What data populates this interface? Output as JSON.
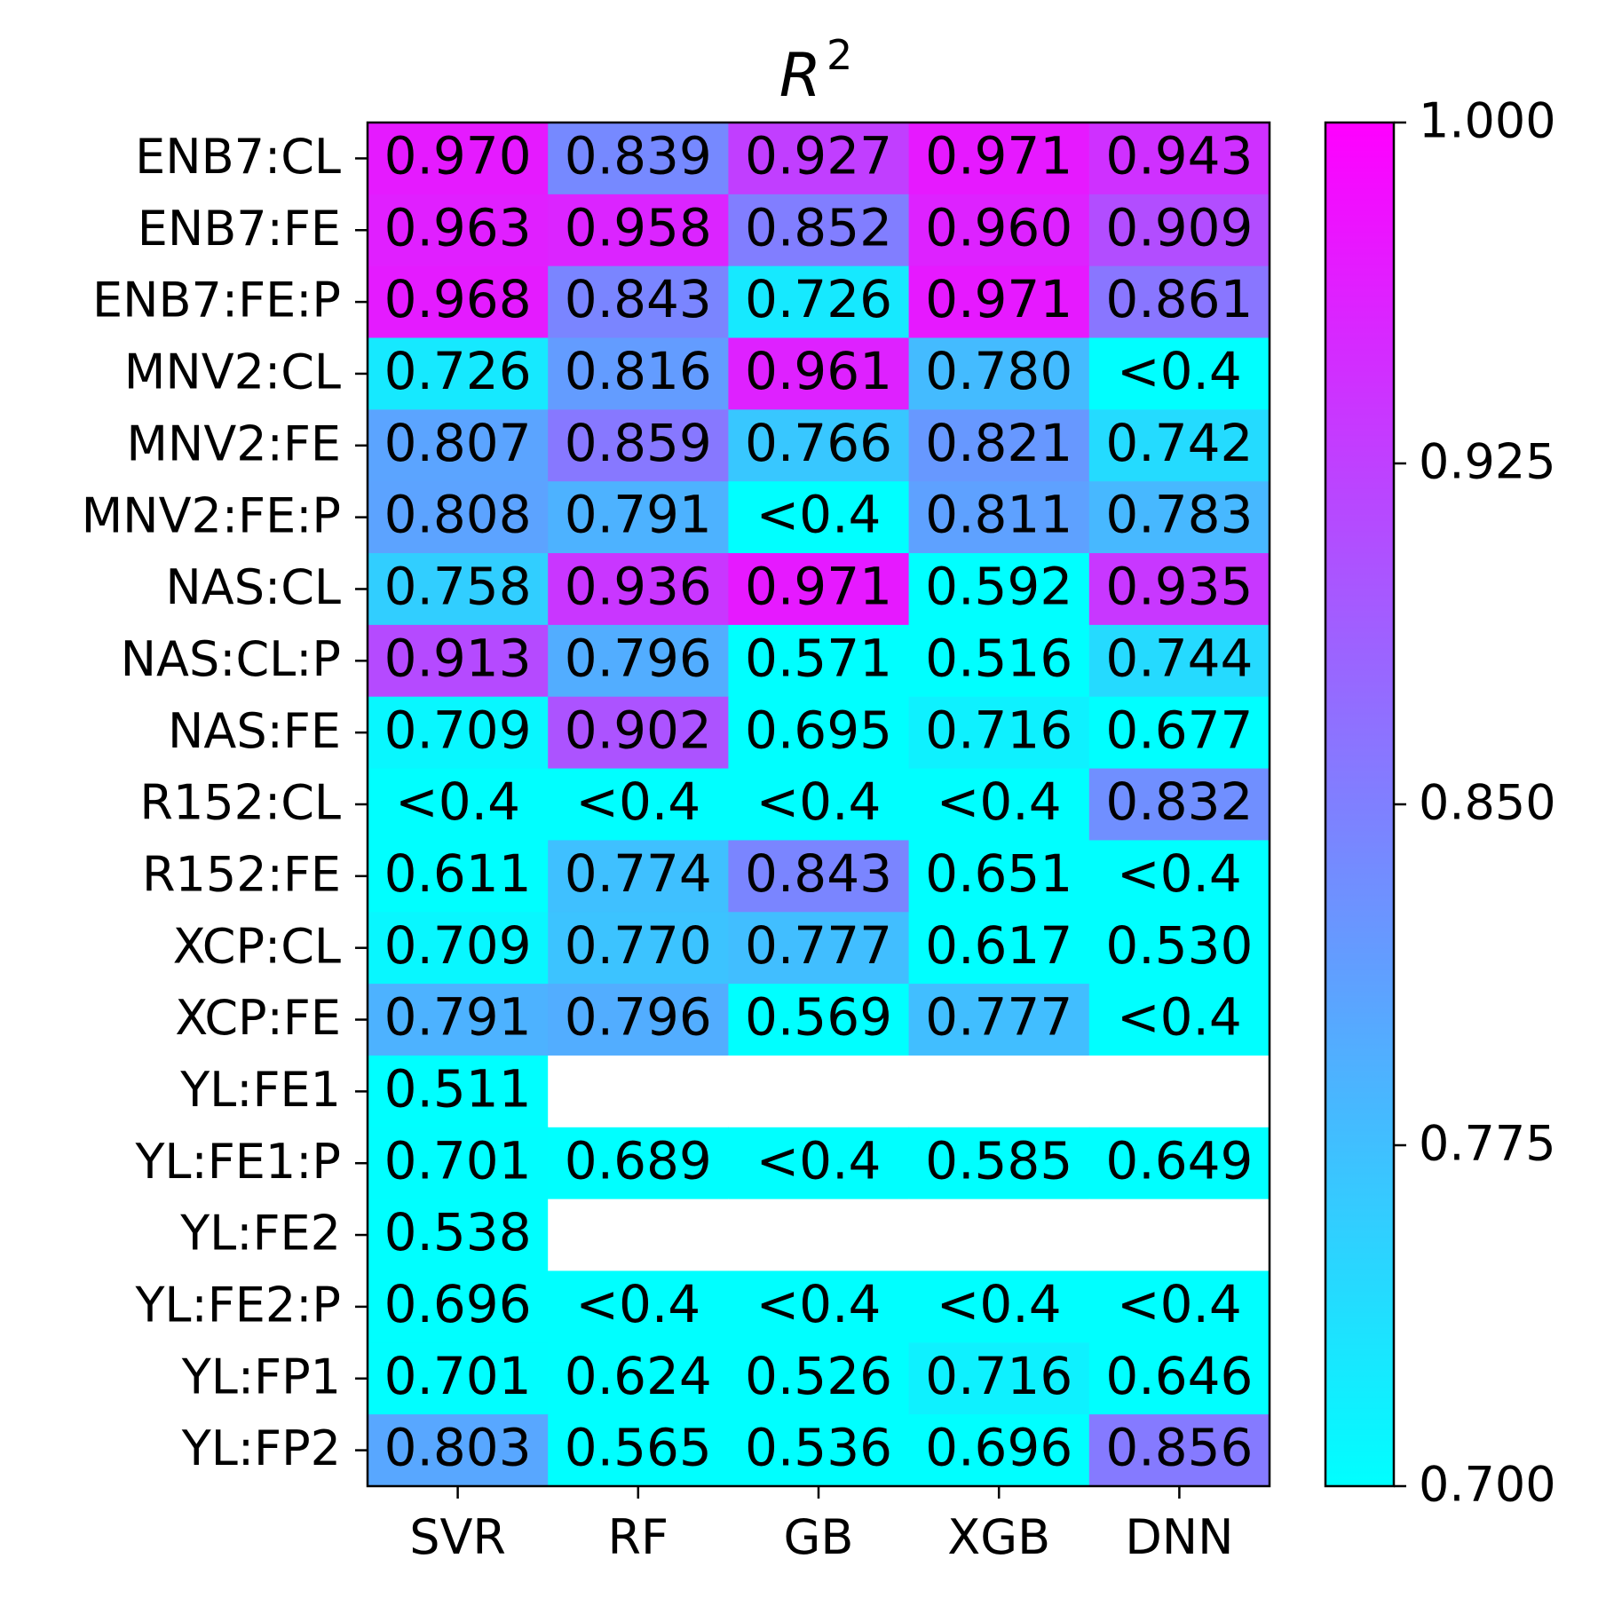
{
  "chart_data": {
    "type": "heatmap",
    "title": "R",
    "title_superscript": "2",
    "columns": [
      "SVR",
      "RF",
      "GB",
      "XGB",
      "DNN"
    ],
    "rows": [
      "ENB7:CL",
      "ENB7:FE",
      "ENB7:FE:P",
      "MNV2:CL",
      "MNV2:FE",
      "MNV2:FE:P",
      "NAS:CL",
      "NAS:CL:P",
      "NAS:FE",
      "R152:CL",
      "R152:FE",
      "XCP:CL",
      "XCP:FE",
      "YL:FE1",
      "YL:FE1:P",
      "YL:FE2",
      "YL:FE2:P",
      "YL:FP1",
      "YL:FP2"
    ],
    "cells": [
      [
        "0.970",
        "0.839",
        "0.927",
        "0.971",
        "0.943"
      ],
      [
        "0.963",
        "0.958",
        "0.852",
        "0.960",
        "0.909"
      ],
      [
        "0.968",
        "0.843",
        "0.726",
        "0.971",
        "0.861"
      ],
      [
        "0.726",
        "0.816",
        "0.961",
        "0.780",
        "<0.4"
      ],
      [
        "0.807",
        "0.859",
        "0.766",
        "0.821",
        "0.742"
      ],
      [
        "0.808",
        "0.791",
        "<0.4",
        "0.811",
        "0.783"
      ],
      [
        "0.758",
        "0.936",
        "0.971",
        "0.592",
        "0.935"
      ],
      [
        "0.913",
        "0.796",
        "0.571",
        "0.516",
        "0.744"
      ],
      [
        "0.709",
        "0.902",
        "0.695",
        "0.716",
        "0.677"
      ],
      [
        "<0.4",
        "<0.4",
        "<0.4",
        "<0.4",
        "0.832"
      ],
      [
        "0.611",
        "0.774",
        "0.843",
        "0.651",
        "<0.4"
      ],
      [
        "0.709",
        "0.770",
        "0.777",
        "0.617",
        "0.530"
      ],
      [
        "0.791",
        "0.796",
        "0.569",
        "0.777",
        "<0.4"
      ],
      [
        "0.511",
        "",
        "",
        "",
        ""
      ],
      [
        "0.701",
        "0.689",
        "<0.4",
        "0.585",
        "0.649"
      ],
      [
        "0.538",
        "",
        "",
        "",
        ""
      ],
      [
        "0.696",
        "<0.4",
        "<0.4",
        "<0.4",
        "<0.4"
      ],
      [
        "0.701",
        "0.624",
        "0.526",
        "0.716",
        "0.646"
      ],
      [
        "0.803",
        "0.565",
        "0.536",
        "0.696",
        "0.856"
      ]
    ],
    "colorscale": {
      "name": "cool",
      "min": 0.7,
      "max": 1.0,
      "min_color": "#00ffff",
      "max_color": "#ff00ff",
      "ticks": [
        "0.700",
        "0.775",
        "0.850",
        "0.925",
        "1.000"
      ]
    }
  }
}
